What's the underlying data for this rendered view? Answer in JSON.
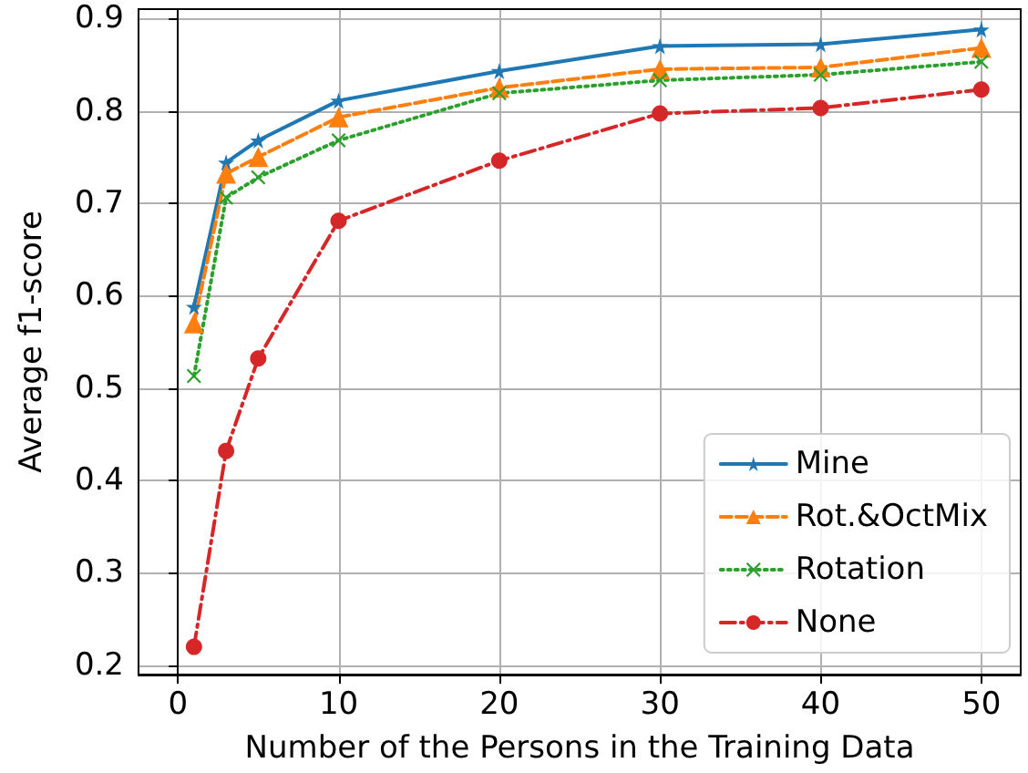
{
  "chart_data": {
    "type": "line",
    "xlabel": "Number of the Persons in the Training Data",
    "ylabel": "Average f1-score",
    "x": [
      1,
      3,
      5,
      10,
      20,
      30,
      40,
      50
    ],
    "series": [
      {
        "name": "Mine",
        "color": "#1f77b4",
        "marker": "star",
        "line_style": "solid",
        "values": [
          0.588,
          0.744,
          0.768,
          0.811,
          0.843,
          0.87,
          0.872,
          0.888
        ]
      },
      {
        "name": "Rot.&OctMix",
        "color": "#ff7f0e",
        "marker": "triangle",
        "line_style": "dashed",
        "values": [
          0.57,
          0.732,
          0.75,
          0.793,
          0.825,
          0.845,
          0.847,
          0.868
        ]
      },
      {
        "name": "Rotation",
        "color": "#2ca02c",
        "marker": "cross",
        "line_style": "dotted",
        "values": [
          0.513,
          0.706,
          0.728,
          0.768,
          0.819,
          0.833,
          0.839,
          0.853
        ]
      },
      {
        "name": "None",
        "color": "#d62728",
        "marker": "circle",
        "line_style": "dashdot",
        "values": [
          0.22,
          0.432,
          0.532,
          0.681,
          0.746,
          0.797,
          0.803,
          0.823
        ]
      }
    ],
    "xlim": [
      -2.45,
      52.45
    ],
    "xticks": [
      0,
      10,
      20,
      30,
      40,
      50
    ],
    "ylim": [
      0.19,
      0.91
    ],
    "yticks": [
      0.2,
      0.3,
      0.4,
      0.5,
      0.6,
      0.7,
      0.8,
      0.9
    ],
    "grid": true,
    "legend": "bottom right"
  }
}
